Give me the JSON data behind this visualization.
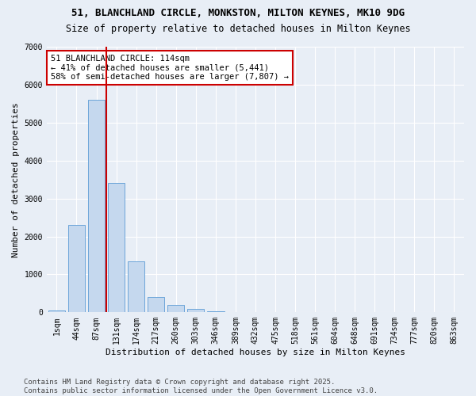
{
  "title": "51, BLANCHLAND CIRCLE, MONKSTON, MILTON KEYNES, MK10 9DG",
  "subtitle": "Size of property relative to detached houses in Milton Keynes",
  "xlabel": "Distribution of detached houses by size in Milton Keynes",
  "ylabel": "Number of detached properties",
  "bar_color": "#c5d8ee",
  "bar_edge_color": "#5b9bd5",
  "background_color": "#e8eef6",
  "grid_color": "#ffffff",
  "categories": [
    "1sqm",
    "44sqm",
    "87sqm",
    "131sqm",
    "174sqm",
    "217sqm",
    "260sqm",
    "303sqm",
    "346sqm",
    "389sqm",
    "432sqm",
    "475sqm",
    "518sqm",
    "561sqm",
    "604sqm",
    "648sqm",
    "691sqm",
    "734sqm",
    "777sqm",
    "820sqm",
    "863sqm"
  ],
  "values": [
    50,
    2300,
    5600,
    3400,
    1350,
    400,
    200,
    100,
    30,
    5,
    3,
    2,
    1,
    0,
    0,
    0,
    0,
    0,
    0,
    0,
    0
  ],
  "ylim": [
    0,
    7000
  ],
  "yticks": [
    0,
    1000,
    2000,
    3000,
    4000,
    5000,
    6000,
    7000
  ],
  "property_line_x": 2.5,
  "property_line_color": "#cc0000",
  "annotation_text": "51 BLANCHLAND CIRCLE: 114sqm\n← 41% of detached houses are smaller (5,441)\n58% of semi-detached houses are larger (7,807) →",
  "annotation_box_color": "#cc0000",
  "footnote": "Contains HM Land Registry data © Crown copyright and database right 2025.\nContains public sector information licensed under the Open Government Licence v3.0.",
  "title_fontsize": 9,
  "subtitle_fontsize": 8.5,
  "label_fontsize": 8,
  "tick_fontsize": 7,
  "annot_fontsize": 7.5,
  "footnote_fontsize": 6.5
}
